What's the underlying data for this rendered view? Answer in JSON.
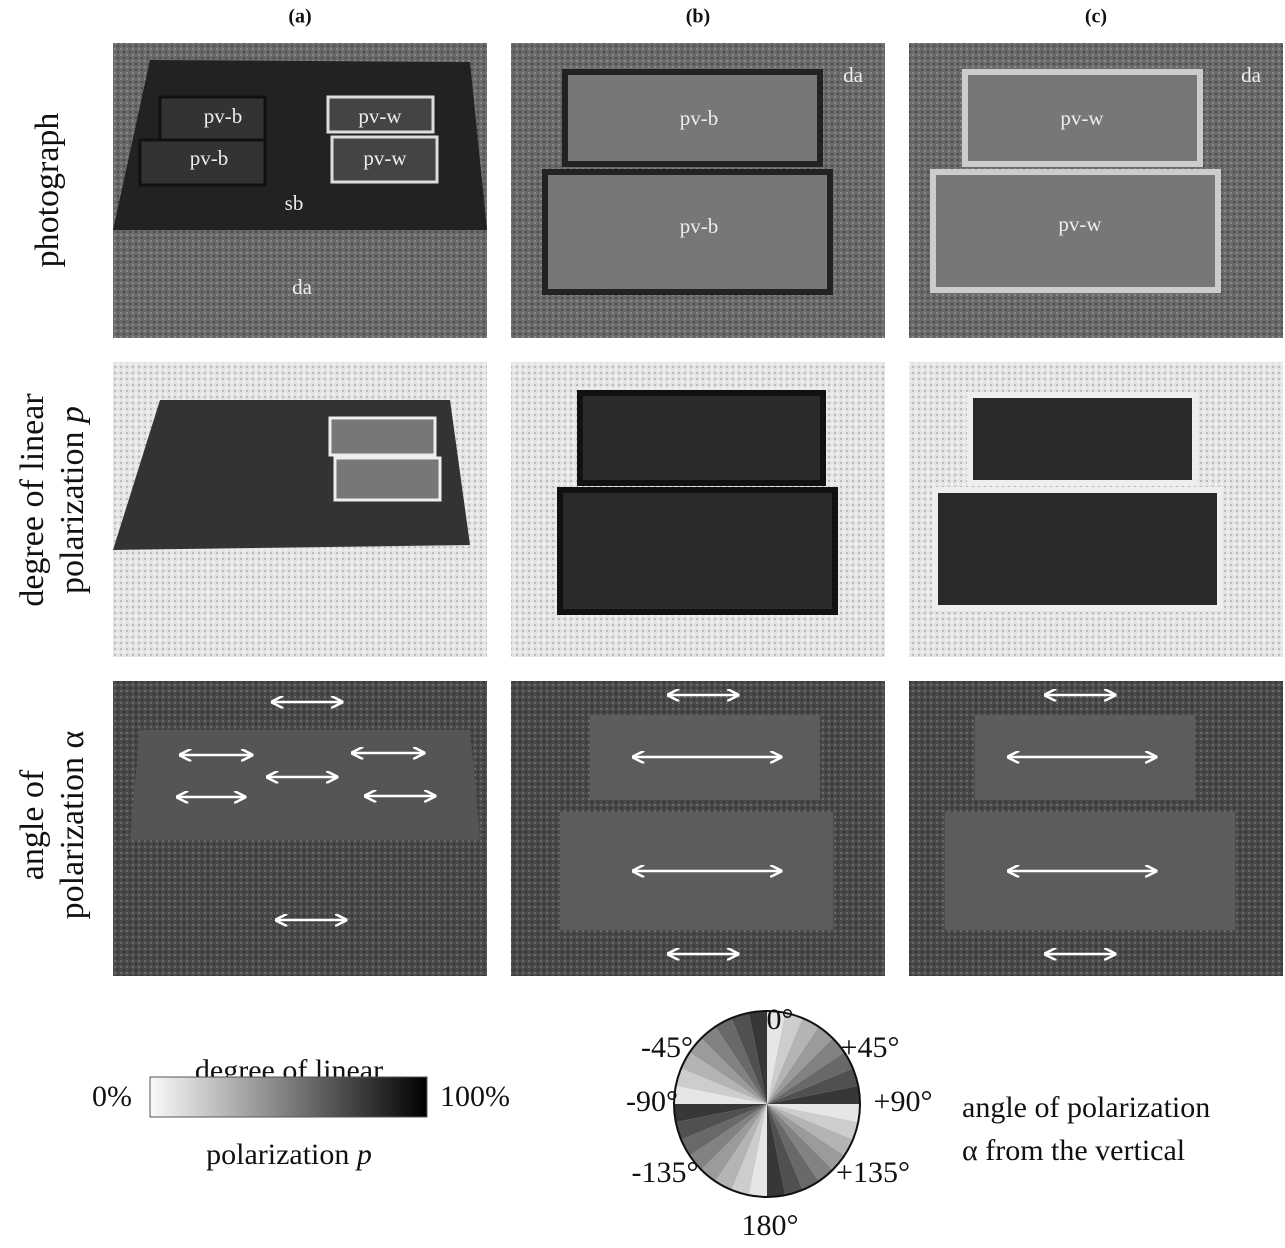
{
  "header": {
    "columns": [
      "(a)",
      "(b)",
      "(c)"
    ]
  },
  "rows": [
    {
      "lines": [
        "photograph"
      ]
    },
    {
      "lines": [
        "degree of linear",
        "polarization"
      ],
      "variable": "p"
    },
    {
      "lines": [
        "angle of",
        "polarization α"
      ]
    }
  ],
  "panel_labels": {
    "a": [
      "pv-b",
      "pv-w",
      "pv-b",
      "pv-w",
      "sb",
      "da"
    ],
    "b": [
      "da",
      "pv-b",
      "pv-b"
    ],
    "c": [
      "da",
      "pv-w",
      "pv-w"
    ]
  },
  "dolp_legend": {
    "title_top": "degree of linear",
    "title_bottom": "polarization",
    "variable": "p",
    "min": "0%",
    "max": "100%"
  },
  "aop_legend": {
    "angles": [
      "0°",
      "+45°",
      "+90°",
      "+135°",
      "180°",
      "-135°",
      "-90°",
      "-45°"
    ],
    "caption": [
      "angle of polarization",
      "α from the vertical"
    ]
  }
}
